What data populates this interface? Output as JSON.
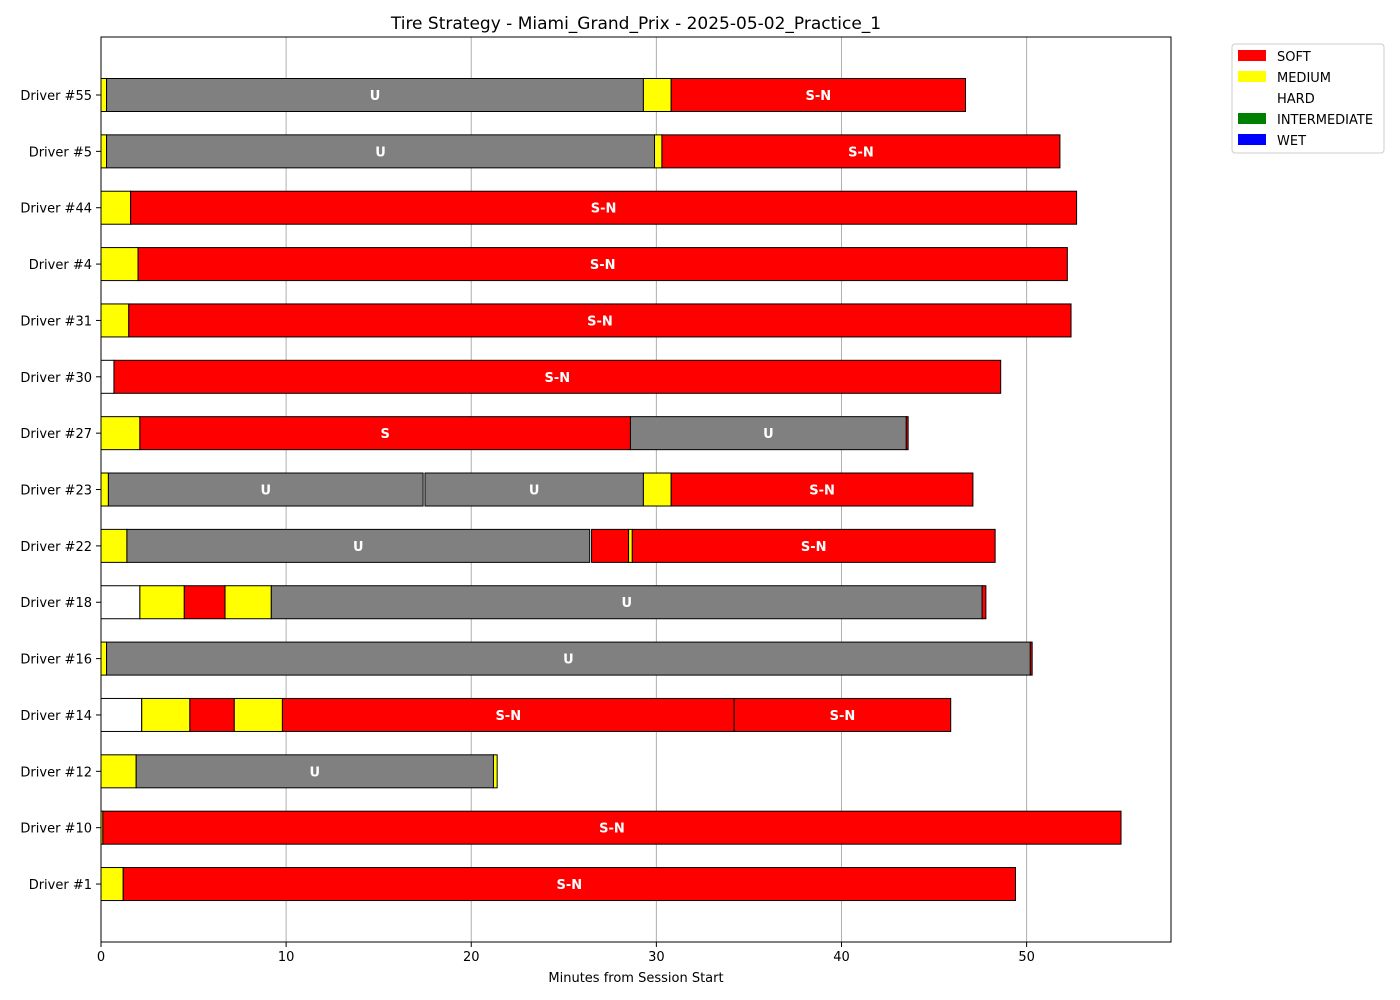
{
  "chart_data": {
    "type": "bar",
    "orientation": "horizontal-stacked",
    "title": "Tire Strategy - Miami_Grand_Prix - 2025-05-02_Practice_1",
    "xlabel": "Minutes from Session Start",
    "ylabel": "",
    "xlim": [
      0,
      57.8
    ],
    "xticks": [
      0,
      10,
      20,
      30,
      40,
      50
    ],
    "grid": "vertical",
    "legend": {
      "placement": "top-right outside",
      "entries": [
        {
          "name": "SOFT",
          "color": "#ff0000"
        },
        {
          "name": "MEDIUM",
          "color": "#ffff00"
        },
        {
          "name": "HARD",
          "color": "#ffffff"
        },
        {
          "name": "INTERMEDIATE",
          "color": "#008000"
        },
        {
          "name": "WET",
          "color": "#0000ff"
        }
      ]
    },
    "colors": {
      "SOFT": "#ff0000",
      "MEDIUM": "#ffff00",
      "HARD": "#ffffff",
      "INTERMEDIATE": "#008000",
      "WET": "#0000ff",
      "UNKNOWN": "#808080"
    },
    "drivers": [
      {
        "name": "Driver #55",
        "stints": [
          {
            "compound": "MEDIUM",
            "start": 0.0,
            "end": 0.3,
            "label": ""
          },
          {
            "compound": "UNKNOWN",
            "start": 0.3,
            "end": 29.3,
            "label": "U"
          },
          {
            "compound": "MEDIUM",
            "start": 29.3,
            "end": 30.8,
            "label": ""
          },
          {
            "compound": "SOFT",
            "start": 30.8,
            "end": 46.7,
            "label": "S-N"
          }
        ]
      },
      {
        "name": "Driver #5",
        "stints": [
          {
            "compound": "MEDIUM",
            "start": 0.0,
            "end": 0.3,
            "label": ""
          },
          {
            "compound": "UNKNOWN",
            "start": 0.3,
            "end": 29.9,
            "label": "U"
          },
          {
            "compound": "MEDIUM",
            "start": 29.9,
            "end": 30.3,
            "label": ""
          },
          {
            "compound": "SOFT",
            "start": 30.3,
            "end": 51.8,
            "label": "S-N"
          }
        ]
      },
      {
        "name": "Driver #44",
        "stints": [
          {
            "compound": "MEDIUM",
            "start": 0.0,
            "end": 1.6,
            "label": ""
          },
          {
            "compound": "SOFT",
            "start": 1.6,
            "end": 52.7,
            "label": "S-N"
          }
        ]
      },
      {
        "name": "Driver #4",
        "stints": [
          {
            "compound": "MEDIUM",
            "start": 0.0,
            "end": 2.0,
            "label": ""
          },
          {
            "compound": "SOFT",
            "start": 2.0,
            "end": 52.2,
            "label": "S-N"
          }
        ]
      },
      {
        "name": "Driver #31",
        "stints": [
          {
            "compound": "MEDIUM",
            "start": 0.0,
            "end": 1.5,
            "label": ""
          },
          {
            "compound": "SOFT",
            "start": 1.5,
            "end": 52.4,
            "label": "S-N"
          }
        ]
      },
      {
        "name": "Driver #30",
        "stints": [
          {
            "compound": "HARD",
            "start": 0.0,
            "end": 0.7,
            "label": ""
          },
          {
            "compound": "SOFT",
            "start": 0.7,
            "end": 48.6,
            "label": "S-N"
          }
        ]
      },
      {
        "name": "Driver #27",
        "stints": [
          {
            "compound": "MEDIUM",
            "start": 0.0,
            "end": 2.1,
            "label": ""
          },
          {
            "compound": "SOFT",
            "start": 2.1,
            "end": 28.6,
            "label": "S"
          },
          {
            "compound": "UNKNOWN",
            "start": 28.6,
            "end": 43.5,
            "label": "U"
          },
          {
            "compound": "SOFT",
            "start": 43.5,
            "end": 43.6,
            "label": ""
          }
        ]
      },
      {
        "name": "Driver #23",
        "stints": [
          {
            "compound": "MEDIUM",
            "start": 0.0,
            "end": 0.4,
            "label": ""
          },
          {
            "compound": "UNKNOWN",
            "start": 0.4,
            "end": 17.4,
            "label": "U"
          },
          {
            "compound": "UNKNOWN",
            "start": 17.5,
            "end": 29.3,
            "label": "U"
          },
          {
            "compound": "MEDIUM",
            "start": 29.3,
            "end": 30.8,
            "label": ""
          },
          {
            "compound": "SOFT",
            "start": 30.8,
            "end": 47.1,
            "label": "S-N"
          }
        ]
      },
      {
        "name": "Driver #22",
        "stints": [
          {
            "compound": "MEDIUM",
            "start": 0.0,
            "end": 1.4,
            "label": ""
          },
          {
            "compound": "UNKNOWN",
            "start": 1.4,
            "end": 26.4,
            "label": "U"
          },
          {
            "compound": "SOFT",
            "start": 26.5,
            "end": 28.5,
            "label": ""
          },
          {
            "compound": "MEDIUM",
            "start": 28.5,
            "end": 28.7,
            "label": ""
          },
          {
            "compound": "SOFT",
            "start": 28.7,
            "end": 48.3,
            "label": "S-N"
          }
        ]
      },
      {
        "name": "Driver #18",
        "stints": [
          {
            "compound": "HARD",
            "start": 0.0,
            "end": 2.1,
            "label": ""
          },
          {
            "compound": "MEDIUM",
            "start": 2.1,
            "end": 4.5,
            "label": ""
          },
          {
            "compound": "SOFT",
            "start": 4.5,
            "end": 6.7,
            "label": ""
          },
          {
            "compound": "MEDIUM",
            "start": 6.7,
            "end": 9.2,
            "label": ""
          },
          {
            "compound": "UNKNOWN",
            "start": 9.2,
            "end": 47.6,
            "label": "U"
          },
          {
            "compound": "SOFT",
            "start": 47.6,
            "end": 47.8,
            "label": ""
          }
        ]
      },
      {
        "name": "Driver #16",
        "stints": [
          {
            "compound": "MEDIUM",
            "start": 0.0,
            "end": 0.3,
            "label": ""
          },
          {
            "compound": "UNKNOWN",
            "start": 0.3,
            "end": 50.2,
            "label": "U"
          },
          {
            "compound": "SOFT",
            "start": 50.2,
            "end": 50.3,
            "label": ""
          }
        ]
      },
      {
        "name": "Driver #14",
        "stints": [
          {
            "compound": "HARD",
            "start": 0.0,
            "end": 2.2,
            "label": ""
          },
          {
            "compound": "MEDIUM",
            "start": 2.2,
            "end": 4.8,
            "label": ""
          },
          {
            "compound": "SOFT",
            "start": 4.8,
            "end": 7.2,
            "label": ""
          },
          {
            "compound": "MEDIUM",
            "start": 7.2,
            "end": 9.8,
            "label": ""
          },
          {
            "compound": "SOFT",
            "start": 9.8,
            "end": 34.2,
            "label": "S-N"
          },
          {
            "compound": "SOFT",
            "start": 34.2,
            "end": 45.9,
            "label": "S-N"
          }
        ]
      },
      {
        "name": "Driver #12",
        "stints": [
          {
            "compound": "MEDIUM",
            "start": 0.0,
            "end": 1.9,
            "label": ""
          },
          {
            "compound": "UNKNOWN",
            "start": 1.9,
            "end": 21.2,
            "label": "U"
          },
          {
            "compound": "MEDIUM",
            "start": 21.2,
            "end": 21.4,
            "label": ""
          }
        ]
      },
      {
        "name": "Driver #10",
        "stints": [
          {
            "compound": "MEDIUM",
            "start": 0.0,
            "end": 0.1,
            "label": ""
          },
          {
            "compound": "SOFT",
            "start": 0.1,
            "end": 55.1,
            "label": "S-N"
          }
        ]
      },
      {
        "name": "Driver #1",
        "stints": [
          {
            "compound": "MEDIUM",
            "start": 0.0,
            "end": 1.2,
            "label": ""
          },
          {
            "compound": "SOFT",
            "start": 1.2,
            "end": 49.4,
            "label": "S-N"
          }
        ]
      }
    ]
  }
}
